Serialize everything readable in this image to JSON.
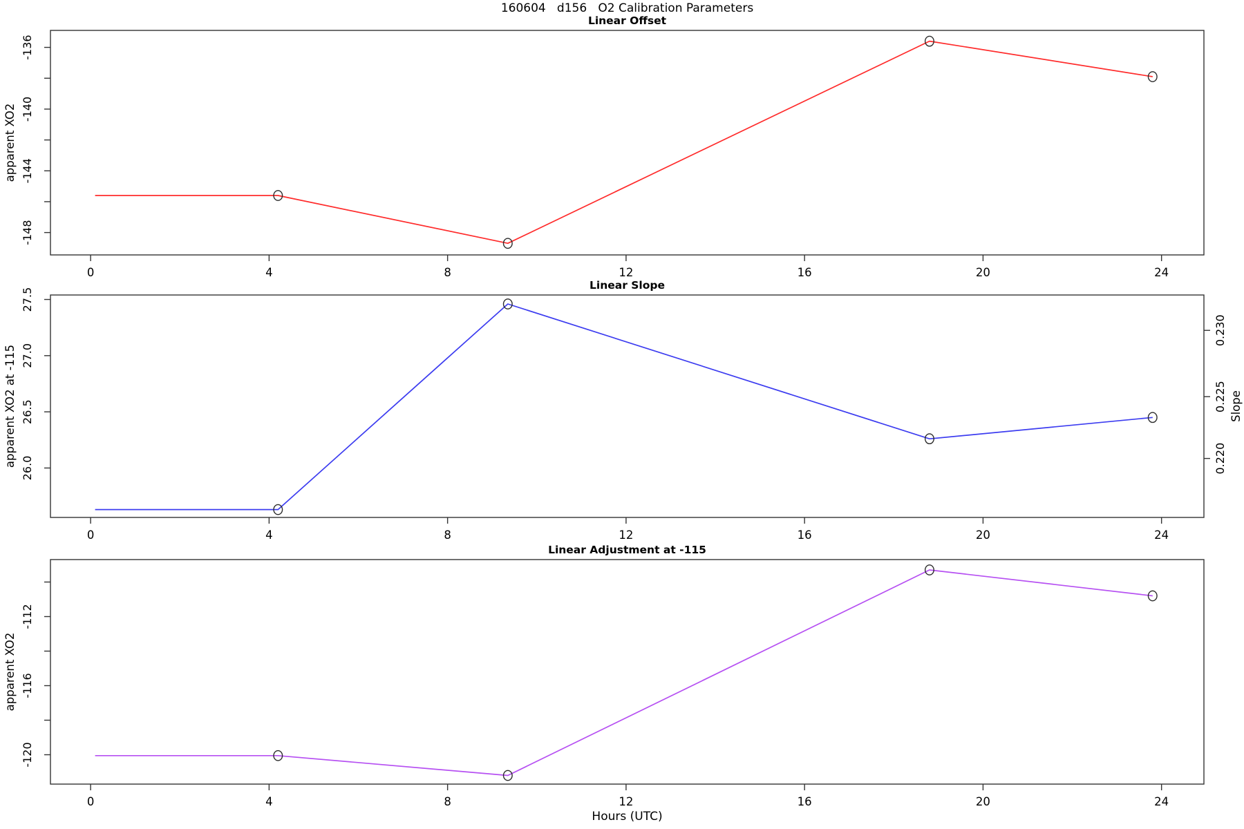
{
  "page_title": "160604   d156   O2 Calibration Parameters",
  "x_axis": {
    "label": "Hours (UTC)",
    "ticks": [
      0,
      4,
      8,
      12,
      16,
      20,
      24
    ],
    "lim": [
      -0.9,
      24.95
    ]
  },
  "marker": "open-circle",
  "axis_color": "#333333",
  "chart_data": [
    {
      "type": "line",
      "title": "Linear Offset",
      "ylabel": "apparent XO2",
      "color": "#ff2b2b",
      "x": [
        0.1,
        4.2,
        9.35,
        18.8,
        23.8
      ],
      "values": [
        -145.6,
        -145.6,
        -148.7,
        -135.6,
        -137.9
      ],
      "marker_start_index": 1,
      "ylim": [
        -149.45,
        -134.9
      ],
      "yticks": [
        {
          "v": -136,
          "label": "-136"
        },
        {
          "v": -138,
          "label": ""
        },
        {
          "v": -140,
          "label": "-140"
        },
        {
          "v": -142,
          "label": ""
        },
        {
          "v": -144,
          "label": "-144"
        },
        {
          "v": -146,
          "label": ""
        },
        {
          "v": -148,
          "label": "-148"
        }
      ]
    },
    {
      "type": "line",
      "title": "Linear Slope",
      "ylabel": "apparent XO2 at -115",
      "ylabel_right": "Slope",
      "color": "#3c3cf0",
      "x": [
        0.1,
        4.2,
        9.35,
        18.8,
        23.8
      ],
      "values": [
        25.63,
        25.63,
        27.46,
        26.26,
        26.45
      ],
      "marker_start_index": 1,
      "ylim": [
        25.56,
        27.54
      ],
      "yticks": [
        {
          "v": 27.5,
          "label": "27.5"
        },
        {
          "v": 27.0,
          "label": "27.0"
        },
        {
          "v": 26.5,
          "label": "26.5"
        },
        {
          "v": 26.0,
          "label": "26.0"
        }
      ],
      "right_yticks": [
        {
          "v": 27.225,
          "label": "0.230"
        },
        {
          "v": 26.635,
          "label": "0.225"
        },
        {
          "v": 26.085,
          "label": "0.220"
        }
      ]
    },
    {
      "type": "line",
      "title": "Linear Adjustment at -115",
      "ylabel": "apparent XO2",
      "color": "#b650f2",
      "x": [
        0.1,
        4.2,
        9.35,
        18.8,
        23.8
      ],
      "values": [
        -120.05,
        -120.05,
        -121.2,
        -109.3,
        -110.8
      ],
      "marker_start_index": 1,
      "ylim": [
        -121.7,
        -108.7
      ],
      "yticks": [
        {
          "v": -110,
          "label": ""
        },
        {
          "v": -112,
          "label": "-112"
        },
        {
          "v": -114,
          "label": ""
        },
        {
          "v": -116,
          "label": "-116"
        },
        {
          "v": -118,
          "label": ""
        },
        {
          "v": -120,
          "label": "-120"
        }
      ]
    }
  ]
}
